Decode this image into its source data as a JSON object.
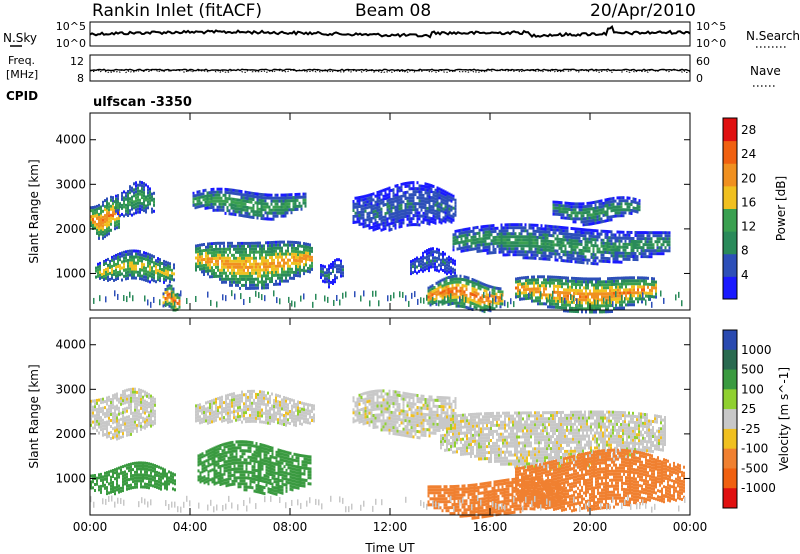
{
  "header": {
    "station": "Rankin Inlet (fitACF)",
    "beam": "Beam 08",
    "date": "20/Apr/2010"
  },
  "strips": {
    "nsky_label": "N.Sky",
    "nsky_ticks": [
      "10^5",
      "10^0"
    ],
    "nsearch_label": "N.Search",
    "freq_label_line1": "Freq.",
    "freq_label_line2": "[MHz]",
    "freq_ticks": [
      "12",
      "8"
    ],
    "nave_label": "Nave",
    "nave_ticks": [
      "60",
      "0"
    ],
    "cpid_label": "CPID",
    "cpid_value": "ulfscan -3350"
  },
  "colors": {
    "power_scale": [
      "#1a1aff",
      "#2d4fb8",
      "#2a8a5a",
      "#3aa050",
      "#f0c020",
      "#f09020",
      "#f06010",
      "#e01010"
    ],
    "velocity_scale": [
      "#2a4ab0",
      "#2a6a50",
      "#3a9a40",
      "#90d030",
      "#c8c8c8",
      "#f0c020",
      "#f08030",
      "#f06010",
      "#e01010"
    ]
  },
  "chart_data": [
    {
      "type": "heatmap",
      "title": "Power",
      "xlabel": "Time UT",
      "ylabel": "Slant Range [km]",
      "x_ticks": [
        "00:00",
        "04:00",
        "08:00",
        "12:00",
        "16:00",
        "20:00",
        "00:00"
      ],
      "x_range_hours": [
        0,
        24
      ],
      "y_ticks": [
        1000,
        2000,
        3000,
        4000
      ],
      "ylim": [
        180,
        4600
      ],
      "colorbar": {
        "label": "Power [dB]",
        "ticks": [
          4,
          8,
          12,
          16,
          20,
          24,
          28
        ],
        "range": [
          0,
          30
        ]
      },
      "echo_regions": [
        {
          "t": [
            0.0,
            1.2
          ],
          "range_km": [
            1850,
            2700
          ],
          "power_db": 24
        },
        {
          "t": [
            1.0,
            2.6
          ],
          "range_km": [
            2300,
            3000
          ],
          "power_db": 14
        },
        {
          "t": [
            0.2,
            3.4
          ],
          "range_km": [
            800,
            1450
          ],
          "power_db": 18
        },
        {
          "t": [
            2.9,
            3.6
          ],
          "range_km": [
            200,
            700
          ],
          "power_db": 28
        },
        {
          "t": [
            4.1,
            8.6
          ],
          "range_km": [
            2300,
            2900
          ],
          "power_db": 14
        },
        {
          "t": [
            4.2,
            8.9
          ],
          "range_km": [
            750,
            1800
          ],
          "power_db": 22
        },
        {
          "t": [
            9.2,
            10.1
          ],
          "range_km": [
            800,
            1300
          ],
          "power_db": 8
        },
        {
          "t": [
            10.5,
            14.6
          ],
          "range_km": [
            2000,
            3000
          ],
          "power_db": 8
        },
        {
          "t": [
            12.8,
            14.6
          ],
          "range_km": [
            1000,
            1500
          ],
          "power_db": 8
        },
        {
          "t": [
            13.5,
            16.5
          ],
          "range_km": [
            200,
            900
          ],
          "power_db": 26
        },
        {
          "t": [
            14.5,
            23.2
          ],
          "range_km": [
            1300,
            2100
          ],
          "power_db": 12
        },
        {
          "t": [
            17.0,
            22.6
          ],
          "range_km": [
            200,
            1000
          ],
          "power_db": 24
        },
        {
          "t": [
            18.5,
            22.0
          ],
          "range_km": [
            2200,
            2700
          ],
          "power_db": 12
        }
      ]
    },
    {
      "type": "heatmap",
      "title": "Velocity",
      "xlabel": "Time UT",
      "ylabel": "Slant Range [km]",
      "x_ticks": [
        "00:00",
        "04:00",
        "08:00",
        "12:00",
        "16:00",
        "20:00",
        "00:00"
      ],
      "x_range_hours": [
        0,
        24
      ],
      "y_ticks": [
        1000,
        2000,
        3000,
        4000
      ],
      "ylim": [
        180,
        4600
      ],
      "colorbar": {
        "label": "Velocity [m s^-1]",
        "ticks": [
          "1000",
          "500",
          "100",
          "25",
          "-25",
          "-100",
          "-500",
          "-1000"
        ]
      },
      "echo_regions": [
        {
          "t": [
            0.0,
            2.6
          ],
          "range_km": [
            1950,
            3000
          ],
          "velocity": 0
        },
        {
          "t": [
            0.0,
            3.4
          ],
          "range_km": [
            700,
            1300
          ],
          "velocity": 150
        },
        {
          "t": [
            4.2,
            9.0
          ],
          "range_km": [
            2200,
            2900
          ],
          "velocity": 0
        },
        {
          "t": [
            4.3,
            8.8
          ],
          "range_km": [
            700,
            1800
          ],
          "velocity": 200
        },
        {
          "t": [
            10.5,
            14.6
          ],
          "range_km": [
            2000,
            3000
          ],
          "velocity": 0
        },
        {
          "t": [
            14.0,
            23.0
          ],
          "range_km": [
            1300,
            2600
          ],
          "velocity": 0
        },
        {
          "t": [
            13.5,
            19.0
          ],
          "range_km": [
            200,
            1000
          ],
          "velocity": -300
        },
        {
          "t": [
            17.0,
            23.8
          ],
          "range_km": [
            300,
            1600
          ],
          "velocity": -400
        }
      ]
    }
  ]
}
